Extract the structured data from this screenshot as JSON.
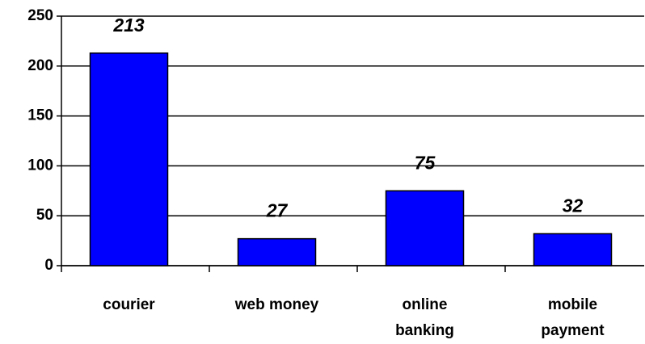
{
  "chart_data": {
    "type": "bar",
    "categories": [
      "courier",
      "web money",
      "online banking",
      "mobile payment"
    ],
    "values": [
      213,
      27,
      75,
      32
    ],
    "color": "#0000ff",
    "ylim": [
      0,
      250
    ],
    "yticks": [
      0,
      50,
      100,
      150,
      200,
      250
    ],
    "grid": true
  }
}
